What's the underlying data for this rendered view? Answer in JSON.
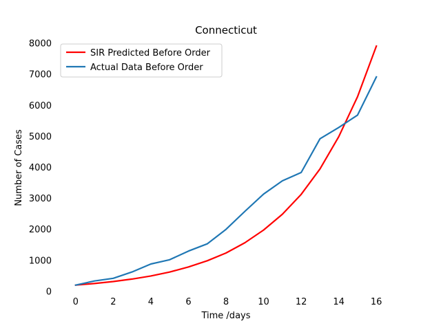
{
  "chart_data": {
    "type": "line",
    "title": "Connecticut",
    "xlabel": "Time /days",
    "ylabel": "Number of Cases",
    "xlim": [
      -0.8,
      16.8
    ],
    "ylim": [
      -100,
      8100
    ],
    "xticks": [
      0,
      2,
      4,
      6,
      8,
      10,
      12,
      14,
      16
    ],
    "yticks": [
      0,
      1000,
      2000,
      3000,
      4000,
      5000,
      6000,
      7000,
      8000
    ],
    "grid": false,
    "legend_position": "top-left",
    "x": [
      0,
      1,
      2,
      3,
      4,
      5,
      6,
      7,
      8,
      9,
      10,
      11,
      12,
      13,
      14,
      15,
      16
    ],
    "series": [
      {
        "name": "SIR Predicted Before Order",
        "color": "#ff0000",
        "values": [
          194,
          245,
          310,
          390,
          490,
          615,
          780,
          980,
          1230,
          1560,
          1970,
          2480,
          3120,
          3940,
          4980,
          6270,
          7900
        ]
      },
      {
        "name": "Actual Data Before Order",
        "color": "#1f77b4",
        "values": [
          194,
          327,
          415,
          618,
          875,
          1012,
          1291,
          1524,
          1993,
          2571,
          3128,
          3557,
          3824,
          4914,
          5276,
          5675,
          6906
        ]
      }
    ]
  }
}
